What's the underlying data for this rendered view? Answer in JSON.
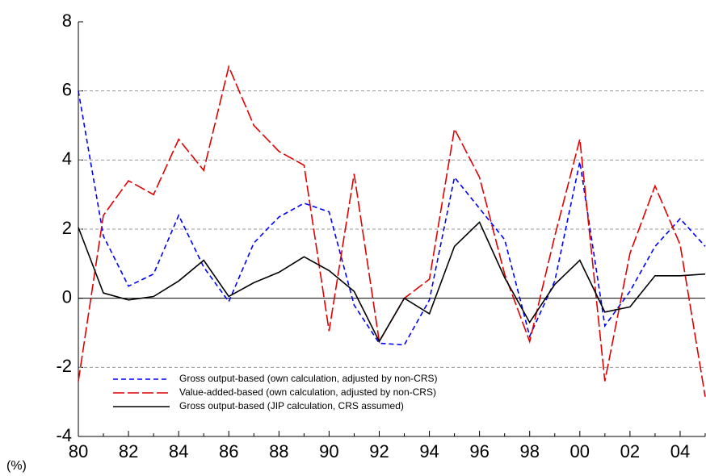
{
  "chart_data": {
    "type": "line",
    "categories": [
      "80",
      null,
      "82",
      null,
      "84",
      null,
      "86",
      null,
      "88",
      null,
      "90",
      null,
      "92",
      null,
      "94",
      null,
      "96",
      null,
      "98",
      null,
      "00",
      null,
      "02",
      null,
      "04",
      null
    ],
    "y_unit_label": "(%)",
    "ylim": [
      -4,
      8
    ],
    "yticks": [
      -4,
      -2,
      0,
      2,
      4,
      6,
      8
    ],
    "grid": true,
    "legend": "lower left",
    "series": [
      {
        "name": "Gross output-based (own calculation, adjusted by non-CRS)",
        "color": "#0000ff",
        "dash": "6,4",
        "values": [
          6.0,
          1.8,
          0.35,
          0.7,
          2.4,
          0.9,
          -0.1,
          1.6,
          2.35,
          2.75,
          2.5,
          -0.2,
          -1.3,
          -1.35,
          -0.05,
          3.5,
          2.6,
          1.7,
          -1.1,
          0.5,
          3.95,
          -0.8,
          0.2,
          1.5,
          2.3,
          1.5
        ]
      },
      {
        "name": "Value-added-based (own calculation, adjusted by non-CRS)",
        "color": "#e00000",
        "dash": "14,4",
        "values": [
          -2.4,
          2.4,
          3.4,
          3.0,
          4.6,
          3.7,
          6.7,
          5.0,
          4.25,
          3.85,
          -0.95,
          3.6,
          -1.25,
          0.0,
          0.55,
          4.9,
          3.5,
          0.7,
          -1.25,
          1.8,
          4.6,
          -2.4,
          1.3,
          3.25,
          1.55,
          -2.85
        ]
      },
      {
        "name": "Gross output-based (JIP calculation, CRS assumed)",
        "color": "#000000",
        "dash": "",
        "values": [
          2.05,
          0.15,
          -0.05,
          0.05,
          0.5,
          1.1,
          0.05,
          0.45,
          0.75,
          1.2,
          0.8,
          0.2,
          -1.25,
          0.0,
          -0.45,
          1.5,
          2.2,
          0.6,
          -0.7,
          0.4,
          1.1,
          -0.4,
          -0.25,
          0.65,
          0.65,
          0.7
        ]
      }
    ]
  }
}
